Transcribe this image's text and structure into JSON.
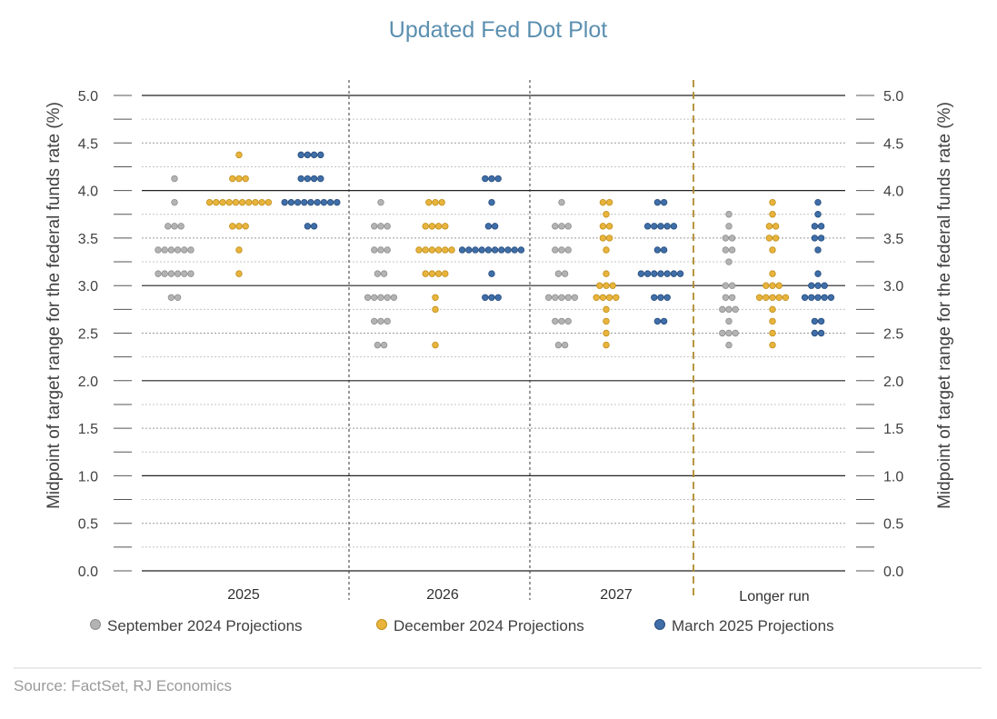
{
  "chart_data": {
    "type": "scatter",
    "title": "Updated Fed Dot Plot",
    "ylabel": "Midpoint of target range for the federal funds rate (%)",
    "ylim": [
      0,
      5
    ],
    "y_ticks": [
      "0.0",
      "0.5",
      "1.0",
      "1.5",
      "2.0",
      "2.5",
      "3.0",
      "3.5",
      "4.0",
      "4.5",
      "5.0"
    ],
    "categories": [
      "2025",
      "2026",
      "2027",
      "Longer run"
    ],
    "series": [
      {
        "name": "September 2024 Projections",
        "color": "#b3b3b3",
        "points": [
          {
            "category": "2025",
            "y": 4.125,
            "count": 1
          },
          {
            "category": "2025",
            "y": 3.875,
            "count": 1
          },
          {
            "category": "2025",
            "y": 3.625,
            "count": 3
          },
          {
            "category": "2025",
            "y": 3.375,
            "count": 6
          },
          {
            "category": "2025",
            "y": 3.125,
            "count": 6
          },
          {
            "category": "2025",
            "y": 2.875,
            "count": 2
          },
          {
            "category": "2026",
            "y": 3.875,
            "count": 1
          },
          {
            "category": "2026",
            "y": 3.625,
            "count": 3
          },
          {
            "category": "2026",
            "y": 3.375,
            "count": 3
          },
          {
            "category": "2026",
            "y": 3.125,
            "count": 2
          },
          {
            "category": "2026",
            "y": 2.875,
            "count": 5
          },
          {
            "category": "2026",
            "y": 2.625,
            "count": 3
          },
          {
            "category": "2026",
            "y": 2.375,
            "count": 2
          },
          {
            "category": "2027",
            "y": 3.875,
            "count": 1
          },
          {
            "category": "2027",
            "y": 3.625,
            "count": 3
          },
          {
            "category": "2027",
            "y": 3.375,
            "count": 3
          },
          {
            "category": "2027",
            "y": 3.125,
            "count": 2
          },
          {
            "category": "2027",
            "y": 2.875,
            "count": 5
          },
          {
            "category": "2027",
            "y": 2.625,
            "count": 3
          },
          {
            "category": "2027",
            "y": 2.375,
            "count": 2
          },
          {
            "category": "Longer run",
            "y": 3.75,
            "count": 1
          },
          {
            "category": "Longer run",
            "y": 3.625,
            "count": 1
          },
          {
            "category": "Longer run",
            "y": 3.5,
            "count": 2
          },
          {
            "category": "Longer run",
            "y": 3.375,
            "count": 2
          },
          {
            "category": "Longer run",
            "y": 3.25,
            "count": 1
          },
          {
            "category": "Longer run",
            "y": 3.0,
            "count": 2
          },
          {
            "category": "Longer run",
            "y": 2.875,
            "count": 2
          },
          {
            "category": "Longer run",
            "y": 2.75,
            "count": 3
          },
          {
            "category": "Longer run",
            "y": 2.625,
            "count": 1
          },
          {
            "category": "Longer run",
            "y": 2.5,
            "count": 3
          },
          {
            "category": "Longer run",
            "y": 2.375,
            "count": 1
          }
        ]
      },
      {
        "name": "December 2024 Projections",
        "color": "#e8b43c",
        "points": [
          {
            "category": "2025",
            "y": 4.375,
            "count": 1
          },
          {
            "category": "2025",
            "y": 4.125,
            "count": 3
          },
          {
            "category": "2025",
            "y": 3.875,
            "count": 10
          },
          {
            "category": "2025",
            "y": 3.625,
            "count": 3
          },
          {
            "category": "2025",
            "y": 3.375,
            "count": 1
          },
          {
            "category": "2025",
            "y": 3.125,
            "count": 1
          },
          {
            "category": "2026",
            "y": 3.875,
            "count": 3
          },
          {
            "category": "2026",
            "y": 3.625,
            "count": 4
          },
          {
            "category": "2026",
            "y": 3.375,
            "count": 6
          },
          {
            "category": "2026",
            "y": 3.125,
            "count": 4
          },
          {
            "category": "2026",
            "y": 2.875,
            "count": 1
          },
          {
            "category": "2026",
            "y": 2.75,
            "count": 1
          },
          {
            "category": "2026",
            "y": 2.375,
            "count": 1
          },
          {
            "category": "2027",
            "y": 3.875,
            "count": 2
          },
          {
            "category": "2027",
            "y": 3.75,
            "count": 1
          },
          {
            "category": "2027",
            "y": 3.625,
            "count": 2
          },
          {
            "category": "2027",
            "y": 3.5,
            "count": 2
          },
          {
            "category": "2027",
            "y": 3.375,
            "count": 1
          },
          {
            "category": "2027",
            "y": 3.125,
            "count": 1
          },
          {
            "category": "2027",
            "y": 3.0,
            "count": 3
          },
          {
            "category": "2027",
            "y": 2.875,
            "count": 4
          },
          {
            "category": "2027",
            "y": 2.75,
            "count": 1
          },
          {
            "category": "2027",
            "y": 2.625,
            "count": 1
          },
          {
            "category": "2027",
            "y": 2.5,
            "count": 1
          },
          {
            "category": "2027",
            "y": 2.375,
            "count": 1
          },
          {
            "category": "Longer run",
            "y": 3.875,
            "count": 1
          },
          {
            "category": "Longer run",
            "y": 3.75,
            "count": 1
          },
          {
            "category": "Longer run",
            "y": 3.625,
            "count": 2
          },
          {
            "category": "Longer run",
            "y": 3.5,
            "count": 2
          },
          {
            "category": "Longer run",
            "y": 3.375,
            "count": 1
          },
          {
            "category": "Longer run",
            "y": 3.125,
            "count": 1
          },
          {
            "category": "Longer run",
            "y": 3.0,
            "count": 3
          },
          {
            "category": "Longer run",
            "y": 2.875,
            "count": 5
          },
          {
            "category": "Longer run",
            "y": 2.75,
            "count": 1
          },
          {
            "category": "Longer run",
            "y": 2.625,
            "count": 1
          },
          {
            "category": "Longer run",
            "y": 2.5,
            "count": 1
          },
          {
            "category": "Longer run",
            "y": 2.375,
            "count": 1
          }
        ]
      },
      {
        "name": "March 2025 Projections",
        "color": "#3f6ea8",
        "points": [
          {
            "category": "2025",
            "y": 4.375,
            "count": 4
          },
          {
            "category": "2025",
            "y": 4.125,
            "count": 4
          },
          {
            "category": "2025",
            "y": 3.875,
            "count": 9
          },
          {
            "category": "2025",
            "y": 3.625,
            "count": 2
          },
          {
            "category": "2026",
            "y": 4.125,
            "count": 3
          },
          {
            "category": "2026",
            "y": 3.875,
            "count": 1
          },
          {
            "category": "2026",
            "y": 3.625,
            "count": 2
          },
          {
            "category": "2026",
            "y": 3.375,
            "count": 10
          },
          {
            "category": "2026",
            "y": 3.125,
            "count": 1
          },
          {
            "category": "2026",
            "y": 2.875,
            "count": 3
          },
          {
            "category": "2027",
            "y": 3.875,
            "count": 2
          },
          {
            "category": "2027",
            "y": 3.625,
            "count": 5
          },
          {
            "category": "2027",
            "y": 3.375,
            "count": 2
          },
          {
            "category": "2027",
            "y": 3.125,
            "count": 7
          },
          {
            "category": "2027",
            "y": 2.875,
            "count": 3
          },
          {
            "category": "2027",
            "y": 2.625,
            "count": 2
          },
          {
            "category": "Longer run",
            "y": 3.875,
            "count": 1
          },
          {
            "category": "Longer run",
            "y": 3.75,
            "count": 1
          },
          {
            "category": "Longer run",
            "y": 3.625,
            "count": 2
          },
          {
            "category": "Longer run",
            "y": 3.5,
            "count": 2
          },
          {
            "category": "Longer run",
            "y": 3.375,
            "count": 1
          },
          {
            "category": "Longer run",
            "y": 3.125,
            "count": 1
          },
          {
            "category": "Longer run",
            "y": 3.0,
            "count": 3
          },
          {
            "category": "Longer run",
            "y": 2.875,
            "count": 5
          },
          {
            "category": "Longer run",
            "y": 2.625,
            "count": 2
          },
          {
            "category": "Longer run",
            "y": 2.5,
            "count": 2
          }
        ]
      }
    ],
    "grid": true,
    "legend_position": "bottom",
    "dual_y_axis": true
  },
  "source": "Source: FactSet, RJ Economics"
}
